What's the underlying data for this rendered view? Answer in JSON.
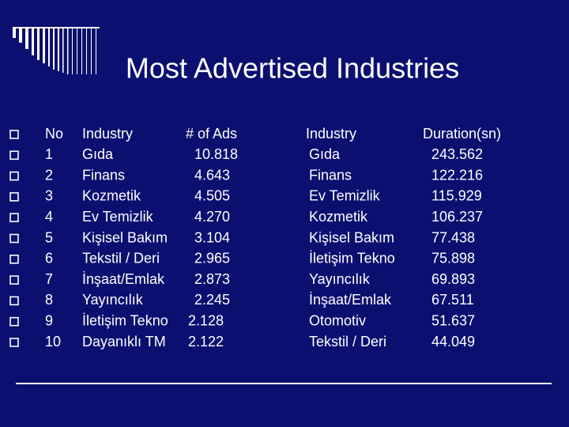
{
  "header": {
    "title": "Most Advertised Industries"
  },
  "table": {
    "headers": [
      "No",
      "Industry",
      "# of Ads",
      "Industry",
      "Duration(sn)"
    ],
    "rows": [
      [
        "1",
        "Gıda",
        "10.818",
        "Gıda",
        "243.562"
      ],
      [
        "2",
        "Finans",
        "4.643",
        "Finans",
        "122.216"
      ],
      [
        "3",
        "Kozmetik",
        "4.505",
        "Ev Temizlik",
        "115.929"
      ],
      [
        "4",
        "Ev Temizlik",
        "4.270",
        "Kozmetik",
        "106.237"
      ],
      [
        "5",
        "Kişisel Bakım",
        "3.104",
        "Kişisel Bakım",
        "77.438"
      ],
      [
        "6",
        "Tekstil / Deri",
        "2.965",
        "İletişim Tekno",
        "75.898"
      ],
      [
        "7",
        "İnşaat/Emlak",
        "2.873",
        "Yayıncılık",
        "69.893"
      ],
      [
        "8",
        "Yayıncılık",
        "2.245",
        "İnşaat/Emlak",
        "67.511"
      ],
      [
        "9",
        "İletişim Tekno",
        "2.128",
        "Otomotiv",
        "51.637"
      ],
      [
        "10",
        "Dayanıklı TM",
        "2.122",
        "Tekstil / Deri",
        "44.049"
      ]
    ]
  }
}
